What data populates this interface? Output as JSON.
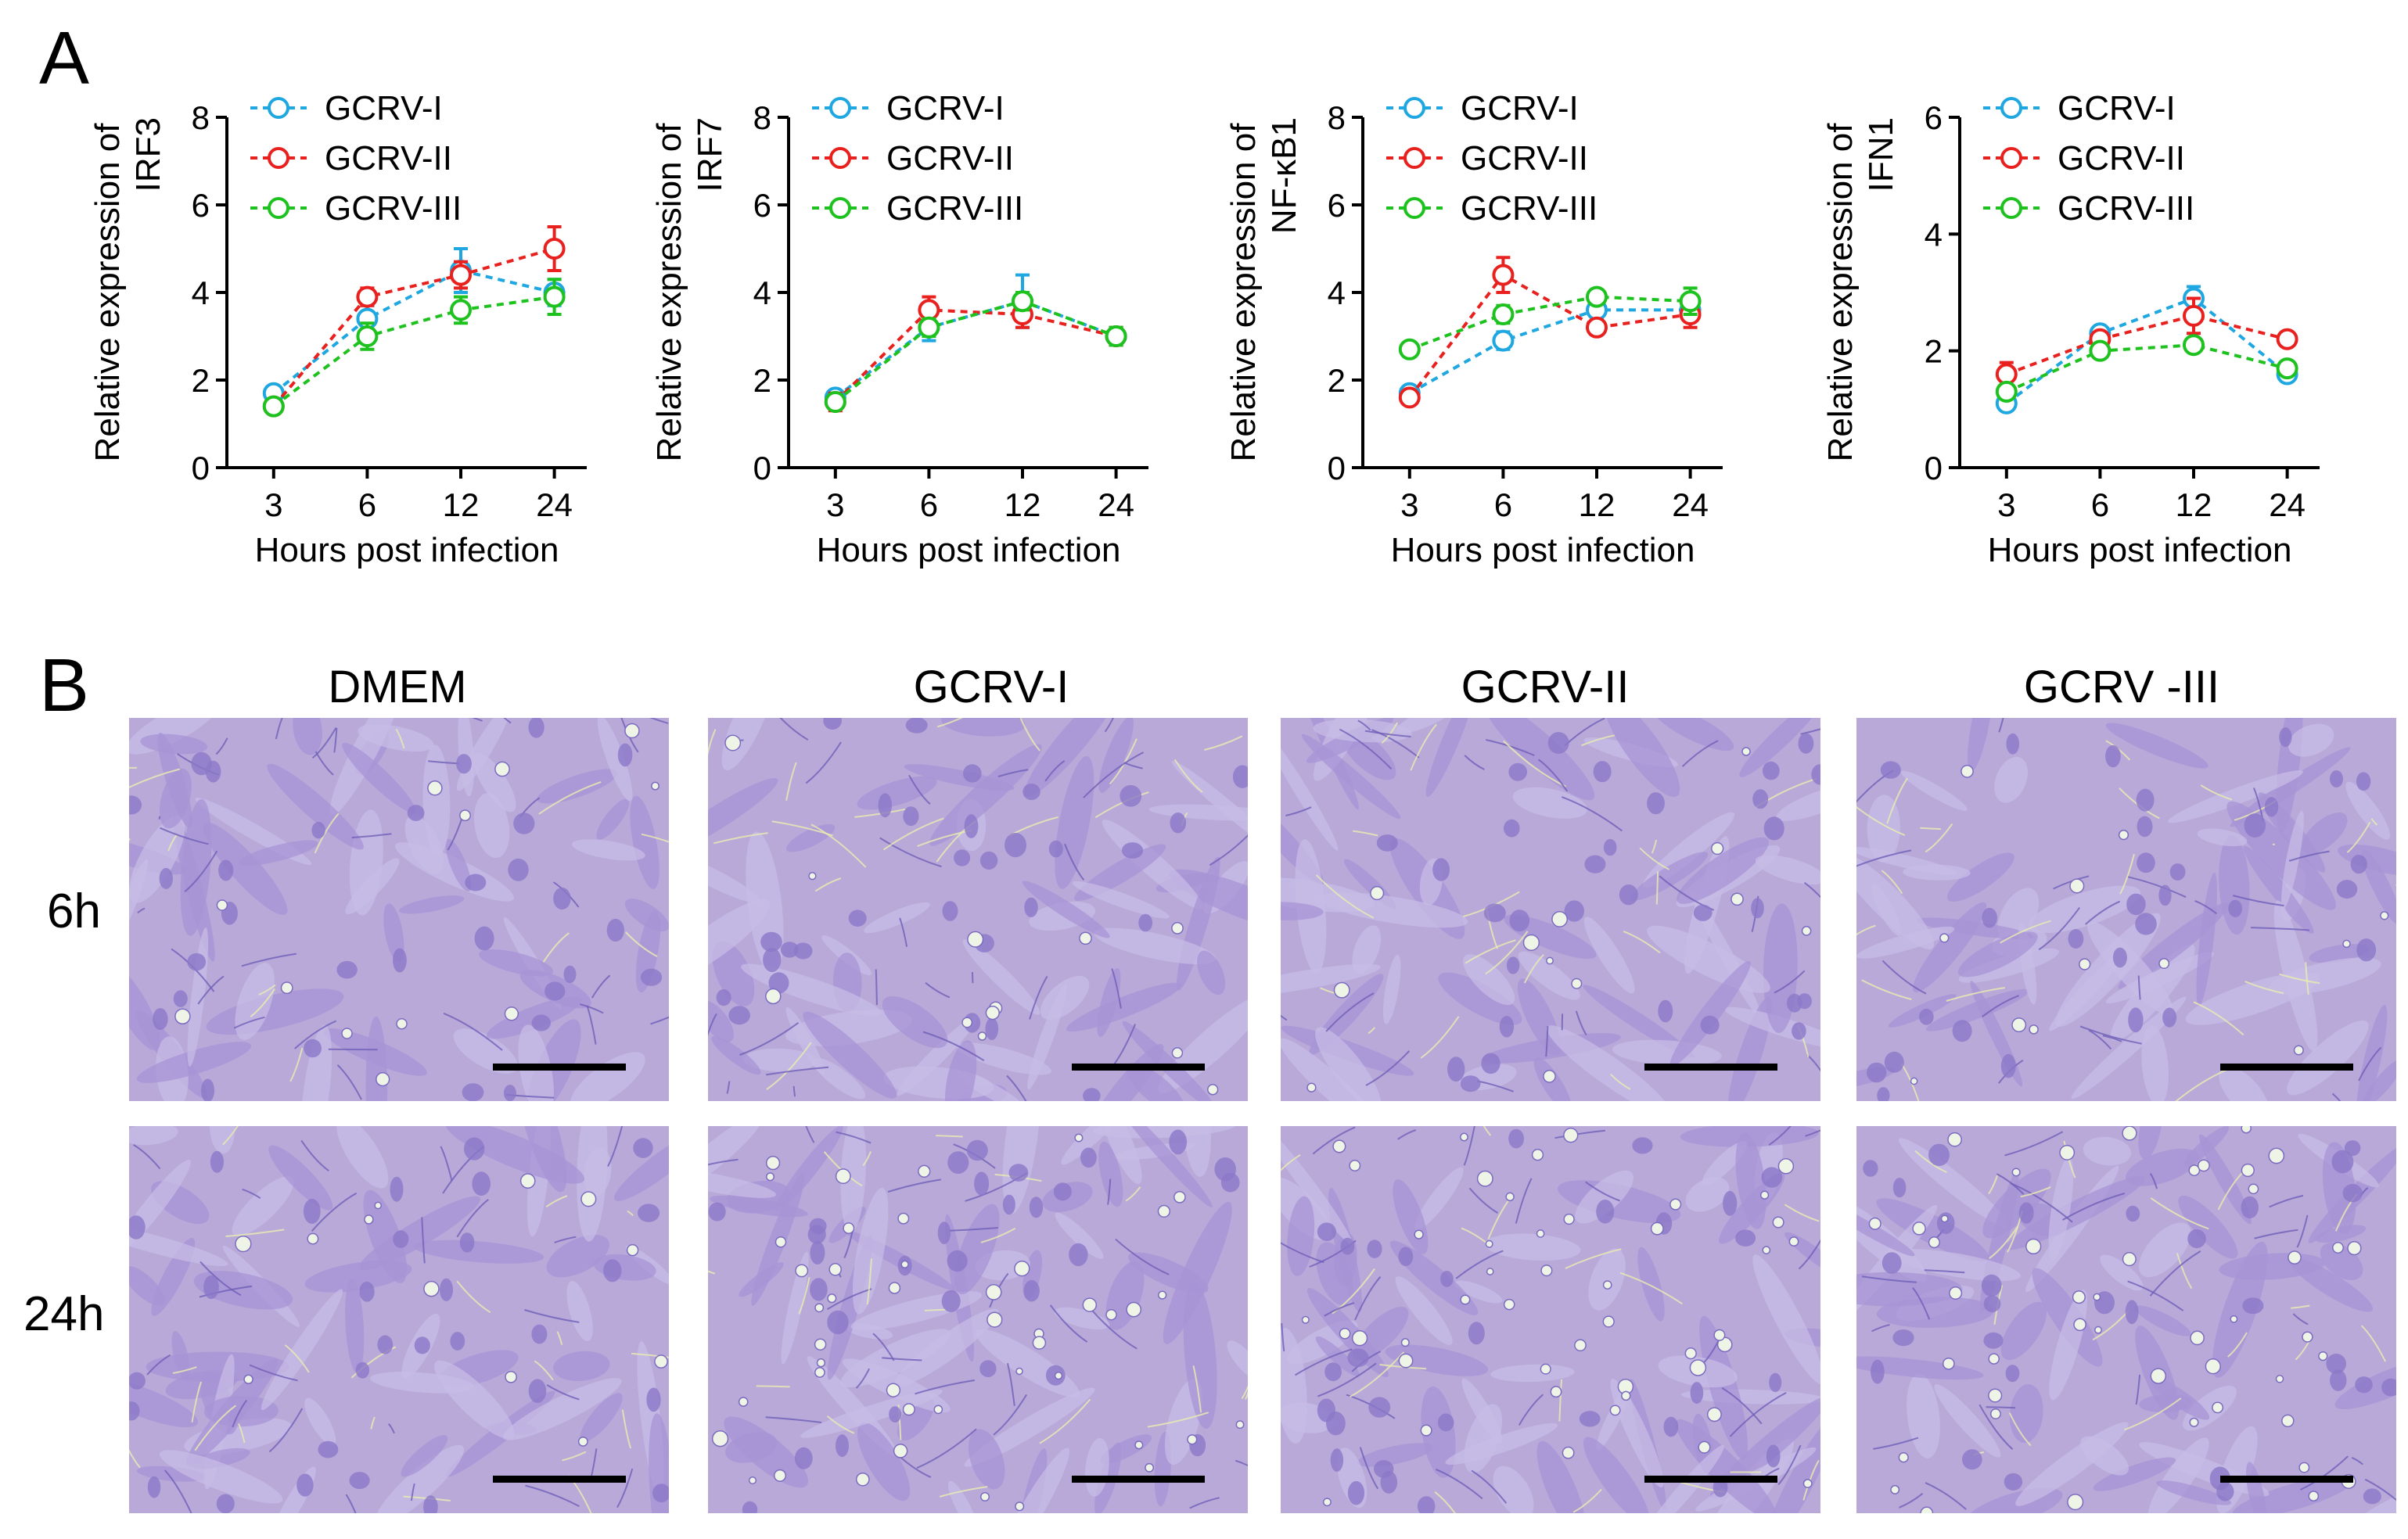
{
  "panel_a_label": "A",
  "panel_b_label": "B",
  "series_names": [
    "GCRV-I",
    "GCRV-II",
    "GCRV-III"
  ],
  "series_colors": [
    "#1ea7e1",
    "#e8211f",
    "#1ec21e"
  ],
  "chart_data": [
    {
      "type": "line",
      "gene": "IRF3",
      "ylabel_line1": "Relative expression of",
      "ylabel_line2": "IRF3",
      "xlabel": "Hours post infection",
      "categories": [
        "3",
        "6",
        "12",
        "24"
      ],
      "ylim": [
        0,
        8
      ],
      "yticks": [
        0,
        2,
        4,
        6,
        8
      ],
      "series": [
        {
          "name": "GCRV-I",
          "values": [
            1.7,
            3.4,
            4.5,
            4.0
          ],
          "errors": [
            0.1,
            0.3,
            0.5,
            0.3
          ]
        },
        {
          "name": "GCRV-II",
          "values": [
            1.4,
            3.9,
            4.4,
            5.0
          ],
          "errors": [
            0.1,
            0.2,
            0.3,
            0.5
          ]
        },
        {
          "name": "GCRV-III",
          "values": [
            1.4,
            3.0,
            3.6,
            3.9
          ],
          "errors": [
            0.1,
            0.3,
            0.3,
            0.4
          ]
        }
      ]
    },
    {
      "type": "line",
      "gene": "IRF7",
      "ylabel_line1": "Relative expression of",
      "ylabel_line2": "IRF7",
      "xlabel": "Hours post infection",
      "categories": [
        "3",
        "6",
        "12",
        "24"
      ],
      "ylim": [
        0,
        8
      ],
      "yticks": [
        0,
        2,
        4,
        6,
        8
      ],
      "series": [
        {
          "name": "GCRV-I",
          "values": [
            1.6,
            3.2,
            3.8,
            3.0
          ],
          "errors": [
            0.1,
            0.3,
            0.6,
            0.2
          ]
        },
        {
          "name": "GCRV-II",
          "values": [
            1.5,
            3.6,
            3.5,
            3.0
          ],
          "errors": [
            0.2,
            0.3,
            0.3,
            0.2
          ]
        },
        {
          "name": "GCRV-III",
          "values": [
            1.5,
            3.2,
            3.8,
            3.0
          ],
          "errors": [
            0.1,
            0.2,
            0.2,
            0.2
          ]
        }
      ]
    },
    {
      "type": "line",
      "gene": "NF-κB1",
      "ylabel_line1": "Relative expression of",
      "ylabel_line2": "NF-κB1",
      "xlabel": "Hours post infection",
      "categories": [
        "3",
        "6",
        "12",
        "24"
      ],
      "ylim": [
        0,
        8
      ],
      "yticks": [
        0,
        2,
        4,
        6,
        8
      ],
      "series": [
        {
          "name": "GCRV-I",
          "values": [
            1.7,
            2.9,
            3.6,
            3.6
          ],
          "errors": [
            0.1,
            0.2,
            0.2,
            0.2
          ]
        },
        {
          "name": "GCRV-II",
          "values": [
            1.6,
            4.4,
            3.2,
            3.5
          ],
          "errors": [
            0.1,
            0.4,
            0.1,
            0.3
          ]
        },
        {
          "name": "GCRV-III",
          "values": [
            2.7,
            3.5,
            3.9,
            3.8
          ],
          "errors": [
            0.1,
            0.2,
            0.1,
            0.3
          ]
        }
      ]
    },
    {
      "type": "line",
      "gene": "IFN1",
      "ylabel_line1": "Relative expression of",
      "ylabel_line2": "IFN1",
      "xlabel": "Hours post infection",
      "categories": [
        "3",
        "6",
        "12",
        "24"
      ],
      "ylim": [
        0,
        6
      ],
      "yticks": [
        0,
        2,
        4,
        6
      ],
      "series": [
        {
          "name": "GCRV-I",
          "values": [
            1.1,
            2.3,
            2.9,
            1.6
          ],
          "errors": [
            0.1,
            0.1,
            0.2,
            0.1
          ]
        },
        {
          "name": "GCRV-II",
          "values": [
            1.6,
            2.2,
            2.6,
            2.2
          ],
          "errors": [
            0.2,
            0.1,
            0.3,
            0.1
          ]
        },
        {
          "name": "GCRV-III",
          "values": [
            1.3,
            2.0,
            2.1,
            1.7
          ],
          "errors": [
            0.1,
            0.1,
            0.1,
            0.1
          ]
        }
      ]
    }
  ],
  "micrographs": {
    "column_titles": [
      "DMEM",
      "GCRV-I",
      "GCRV-II",
      "GCRV -III"
    ],
    "row_labels": [
      "6h",
      "24h"
    ]
  }
}
